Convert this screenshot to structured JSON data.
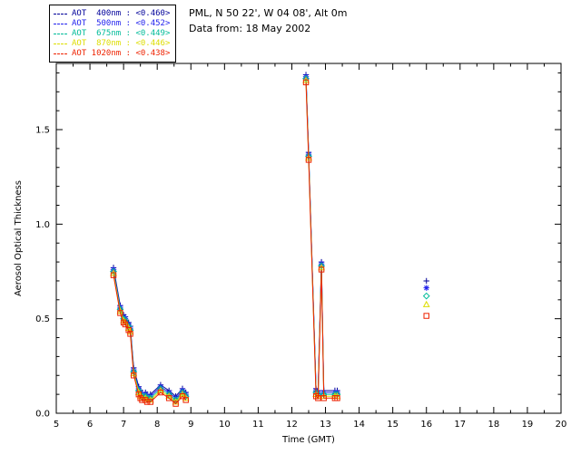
{
  "header": {
    "site_line": "PML, N 50 22', W 04 08', Alt 0m",
    "data_line": "Data from: 18 May 2002"
  },
  "chart_data": {
    "type": "line",
    "title": "",
    "xlabel": "Time (GMT)",
    "ylabel": "Aerosol Optical Thickness",
    "xlim": [
      5,
      20
    ],
    "ylim": [
      0,
      1.85
    ],
    "xticks": [
      5,
      6,
      7,
      8,
      9,
      10,
      11,
      12,
      13,
      14,
      15,
      16,
      17,
      18,
      19,
      20
    ],
    "yticks": [
      0.0,
      0.5,
      1.0,
      1.5
    ],
    "grid": false,
    "legend_position": "top-left",
    "x": [
      6.7,
      6.9,
      7.0,
      7.05,
      7.15,
      7.2,
      7.3,
      7.45,
      7.5,
      7.55,
      7.65,
      7.7,
      7.8,
      8.1,
      8.35,
      8.55,
      8.75,
      8.85,
      12.42,
      12.5,
      12.72,
      12.78,
      12.88,
      12.95,
      13.28,
      13.35
    ],
    "base_values": [
      0.75,
      0.55,
      0.5,
      0.49,
      0.46,
      0.44,
      0.22,
      0.12,
      0.1,
      0.09,
      0.09,
      0.08,
      0.08,
      0.13,
      0.1,
      0.07,
      0.11,
      0.09,
      1.77,
      1.36,
      0.11,
      0.1,
      0.78,
      0.1,
      0.1,
      0.1
    ],
    "gap_threshold": 1.0,
    "marker_key_x": 16.0,
    "series": [
      {
        "name": "AOT  400nm",
        "mean": "<0.460>",
        "color": "#000099",
        "marker": "plus",
        "offset": 0.02,
        "key_y": 0.7
      },
      {
        "name": "AOT  500nm",
        "mean": "<0.452>",
        "color": "#2222ee",
        "marker": "asterisk",
        "offset": 0.01,
        "key_y": 0.663
      },
      {
        "name": "AOT  675nm",
        "mean": "<0.449>",
        "color": "#00bb99",
        "marker": "diamond",
        "offset": 0.0,
        "key_y": 0.62
      },
      {
        "name": "AOT  870nm",
        "mean": "<0.446>",
        "color": "#dddd00",
        "marker": "triangle",
        "offset": -0.01,
        "key_y": 0.575
      },
      {
        "name": "AOT 1020nm",
        "mean": "<0.438>",
        "color": "#ee2200",
        "marker": "square",
        "offset": -0.02,
        "key_y": 0.515
      }
    ]
  }
}
